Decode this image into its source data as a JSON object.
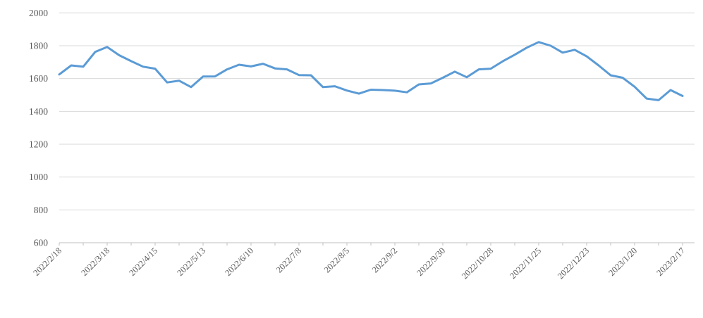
{
  "chart_data": {
    "type": "line",
    "title": "",
    "xlabel": "",
    "ylabel": "",
    "legend": "none",
    "grid": true,
    "ylim": [
      600,
      2000
    ],
    "y_tick_step": 200,
    "y_tick_labels": [
      "600",
      "800",
      "1000",
      "1200",
      "1400",
      "1600",
      "1800",
      "2000"
    ],
    "x_tick_labels": [
      "2022/2/18",
      "2022/3/18",
      "2022/4/15",
      "2022/5/13",
      "2022/6/10",
      "2022/7/8",
      "2022/8/5",
      "2022/9/2",
      "2022/9/30",
      "2022/10/28",
      "2022/11/25",
      "2022/12/23",
      "2023/1/20",
      "2023/2/17"
    ],
    "points_per_labeled_tick": 4,
    "minor_ticks_every_points": 2,
    "series": [
      {
        "name": "",
        "values": [
          1625,
          1680,
          1672,
          1762,
          1792,
          1742,
          1706,
          1672,
          1660,
          1576,
          1587,
          1548,
          1612,
          1613,
          1656,
          1684,
          1674,
          1690,
          1662,
          1656,
          1621,
          1620,
          1548,
          1553,
          1527,
          1508,
          1532,
          1530,
          1526,
          1516,
          1564,
          1570,
          1605,
          1642,
          1608,
          1656,
          1660,
          1705,
          1745,
          1788,
          1822,
          1800,
          1758,
          1775,
          1735,
          1680,
          1620,
          1605,
          1550,
          1478,
          1468,
          1530,
          1494
        ]
      }
    ],
    "colors": {
      "line": "#5B9BD5",
      "gridline": "#D9D9D9",
      "axis": "#BFBFBF",
      "labels": "#595959"
    }
  }
}
